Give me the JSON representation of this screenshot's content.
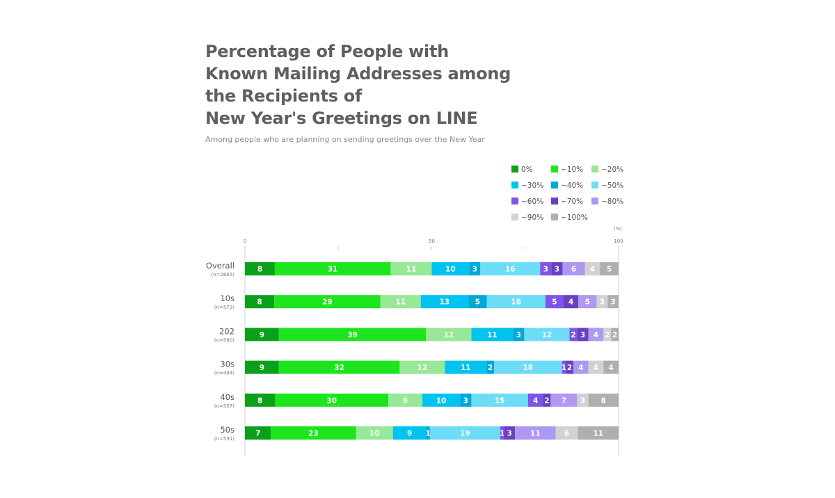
{
  "chart_data": {
    "type": "bar",
    "orientation": "horizontal-stacked",
    "title": "Percentage of People with\nKnown Mailing Addresses among\nthe Recipients of\nNew Year's Greetings on LINE",
    "subtitle": "Among people who are planning on sending greetings over the New Year",
    "unit_label": "(%)",
    "xlim": [
      0,
      100
    ],
    "x_ticks": [
      "0",
      "",
      "50",
      "",
      "100"
    ],
    "legend_position": "top-right",
    "categories": [
      {
        "label": "Overall",
        "n": "(n=2665)"
      },
      {
        "label": "10s",
        "n": "(n=573)"
      },
      {
        "label": "202",
        "n": "(n=560)"
      },
      {
        "label": "30s",
        "n": "(n=494)"
      },
      {
        "label": "40s",
        "n": "(n=507)"
      },
      {
        "label": "50s",
        "n": "(n=531)"
      }
    ],
    "series": [
      {
        "name": "0%",
        "color": "#0aa01a",
        "text_color": "#ffffff",
        "values": [
          8,
          8,
          9,
          9,
          8,
          7
        ]
      },
      {
        "name": "~10%",
        "color": "#1de51d",
        "text_color": "#ffffff",
        "values": [
          31,
          29,
          39,
          32,
          30,
          23
        ]
      },
      {
        "name": "~20%",
        "color": "#97e897",
        "text_color": "#ffffff",
        "values": [
          11,
          11,
          12,
          12,
          9,
          10
        ]
      },
      {
        "name": "~30%",
        "color": "#00c3f0",
        "text_color": "#ffffff",
        "values": [
          10,
          13,
          11,
          11,
          10,
          9
        ]
      },
      {
        "name": "~40%",
        "color": "#00a8d6",
        "text_color": "#ffffff",
        "values": [
          3,
          5,
          3,
          2,
          3,
          1
        ]
      },
      {
        "name": "~50%",
        "color": "#6cdcf7",
        "text_color": "#ffffff",
        "values": [
          16,
          16,
          12,
          18,
          15,
          19
        ]
      },
      {
        "name": "~60%",
        "color": "#7e55e6",
        "text_color": "#ffffff",
        "values": [
          3,
          5,
          2,
          1,
          4,
          1
        ]
      },
      {
        "name": "~70%",
        "color": "#6a3fc0",
        "text_color": "#ffffff",
        "values": [
          3,
          4,
          3,
          2,
          2,
          3
        ]
      },
      {
        "name": "~80%",
        "color": "#ad99f2",
        "text_color": "#ffffff",
        "values": [
          6,
          5,
          4,
          4,
          7,
          11
        ]
      },
      {
        "name": "~90%",
        "color": "#d2d2d2",
        "text_color": "#ffffff",
        "values": [
          4,
          3,
          2,
          4,
          3,
          6
        ]
      },
      {
        "name": "~100%",
        "color": "#afafaf",
        "text_color": "#ffffff",
        "values": [
          5,
          3,
          2,
          4,
          8,
          11
        ]
      }
    ]
  }
}
